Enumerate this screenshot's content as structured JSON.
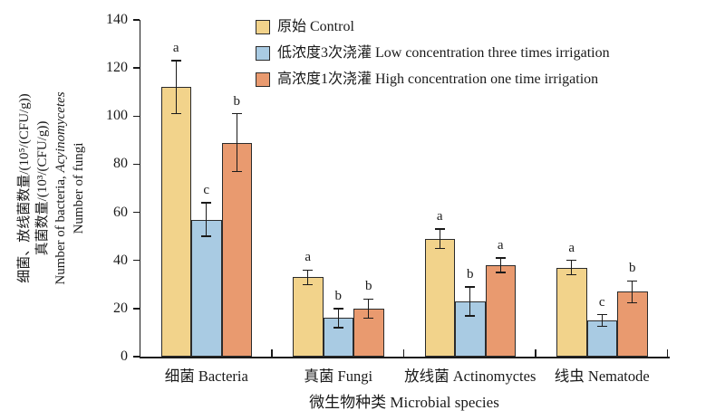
{
  "chart_data": {
    "type": "bar",
    "title": "",
    "categories": [
      "细菌 Bacteria",
      "真菌 Fungi",
      "放线菌 Actinomyctes",
      "线虫 Nematode"
    ],
    "series": [
      {
        "name": "原始 Control",
        "color": "#F2D38B",
        "values": [
          112,
          33,
          49,
          37
        ],
        "errors": [
          11,
          3,
          4,
          3
        ],
        "letters": [
          "a",
          "a",
          "a",
          "a"
        ]
      },
      {
        "name": "低浓度3次浇灌 Low concentration three times irrigation",
        "color": "#A9CBE3",
        "values": [
          57,
          16,
          23,
          15
        ],
        "errors": [
          7,
          4,
          6,
          2.5
        ],
        "letters": [
          "c",
          "b",
          "b",
          "c"
        ]
      },
      {
        "name": "高浓度1次浇灌 High concentration one time irrigation",
        "color": "#E99A6F",
        "values": [
          89,
          20,
          38,
          27
        ],
        "errors": [
          12,
          4,
          3,
          4.5
        ],
        "letters": [
          "b",
          "b",
          "a",
          "b"
        ]
      }
    ],
    "ylim": [
      0,
      140
    ],
    "yticks": [
      0,
      20,
      40,
      60,
      80,
      100,
      120,
      140
    ],
    "ylabel_lines": [
      {
        "text": "细菌、放线菌数量/(10⁵/(CFU/g))"
      },
      {
        "text": "真菌数量/(10³/(CFU/g))"
      },
      {
        "text": "Number of bacteria, ",
        "italic": "Acyinomycetes"
      },
      {
        "text": "Number of fungi"
      }
    ],
    "xlabel": "微生物种类 Microbial species",
    "legend_position": "top-center",
    "grid": false,
    "bar_outline_color": "#2b2b2b",
    "error_bar_color": "#1a1a1a",
    "axis_color": "#1a1a1a"
  }
}
